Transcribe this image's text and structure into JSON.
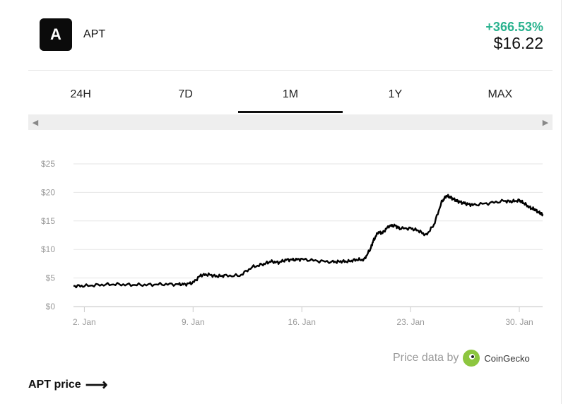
{
  "coin": {
    "logo_letter": "A",
    "ticker": "APT",
    "change": "+366.53%",
    "price": "$16.22"
  },
  "tabs": [
    {
      "label": "24H",
      "active": false
    },
    {
      "label": "7D",
      "active": false
    },
    {
      "label": "1M",
      "active": true
    },
    {
      "label": "1Y",
      "active": false
    },
    {
      "label": "MAX",
      "active": false
    }
  ],
  "colors": {
    "positive": "#2bb38f",
    "line": "#000000",
    "grid": "#e6e6e6",
    "axis_text": "#9a9a9a"
  },
  "credit": {
    "prefix": "Price data by",
    "brand": "CoinGecko",
    "icon": "coingecko-logo-icon"
  },
  "footer": {
    "label": "APT price",
    "icon": "right-arrow-icon"
  },
  "chart_data": {
    "type": "line",
    "title": "",
    "xlabel": "",
    "ylabel": "",
    "y_tick_labels": [
      "$0",
      "$5",
      "$10",
      "$15",
      "$20",
      "$25"
    ],
    "x_tick_labels": [
      "2. Jan",
      "9. Jan",
      "16. Jan",
      "23. Jan",
      "30. Jan"
    ],
    "ylim": [
      0,
      25
    ],
    "xlim_days": [
      1.3,
      31.5
    ],
    "grid": true,
    "legend": "none",
    "series": [
      {
        "x": [
          1.3,
          2.0,
          3.0,
          4.0,
          5.0,
          6.0,
          7.0,
          8.0,
          8.5,
          9.0,
          9.5,
          10.0,
          10.5,
          11.0,
          12.0,
          12.8,
          13.5,
          14.0,
          14.5,
          15.0,
          15.5,
          16.0,
          17.0,
          18.0,
          18.5,
          19.0,
          19.5,
          20.0,
          20.4,
          20.6,
          20.9,
          21.2,
          21.6,
          22.0,
          22.3,
          23.0,
          23.5,
          24.0,
          24.5,
          25.0,
          25.3,
          25.6,
          25.9,
          26.2,
          26.6,
          27.0,
          28.0,
          29.0,
          29.5,
          30.0,
          30.3,
          30.7,
          31.0,
          31.3,
          31.5
        ],
        "y": [
          3.6,
          3.6,
          3.8,
          3.9,
          3.8,
          3.8,
          3.9,
          3.9,
          3.9,
          4.2,
          5.5,
          5.6,
          5.3,
          5.4,
          5.4,
          6.9,
          7.4,
          7.9,
          7.7,
          8.2,
          8.2,
          8.3,
          8.0,
          7.8,
          7.9,
          7.9,
          8.2,
          8.2,
          10.0,
          11.5,
          13.0,
          12.9,
          14.1,
          14.2,
          13.7,
          13.7,
          13.3,
          12.5,
          14.3,
          18.3,
          19.4,
          19.1,
          18.6,
          18.3,
          18.0,
          17.8,
          18.1,
          18.5,
          18.4,
          18.6,
          18.1,
          17.3,
          17.0,
          16.4,
          16.2
        ]
      }
    ]
  }
}
